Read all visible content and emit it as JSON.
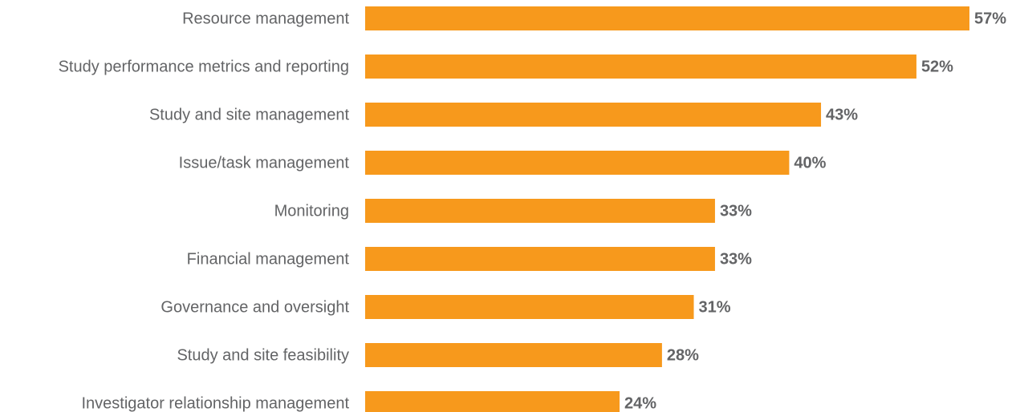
{
  "chart_data": {
    "type": "bar",
    "orientation": "horizontal",
    "categories": [
      "Resource management",
      "Study performance metrics and reporting",
      "Study and site management",
      "Issue/task management",
      "Monitoring",
      "Financial management",
      "Governance and oversight",
      "Study and site feasibility",
      "Investigator relationship management"
    ],
    "values": [
      57,
      52,
      43,
      40,
      33,
      33,
      31,
      28,
      24
    ],
    "value_labels": [
      "57%",
      "52%",
      "43%",
      "40%",
      "33%",
      "33%",
      "31%",
      "28%",
      "24%"
    ],
    "color": "#f7991c"
  }
}
